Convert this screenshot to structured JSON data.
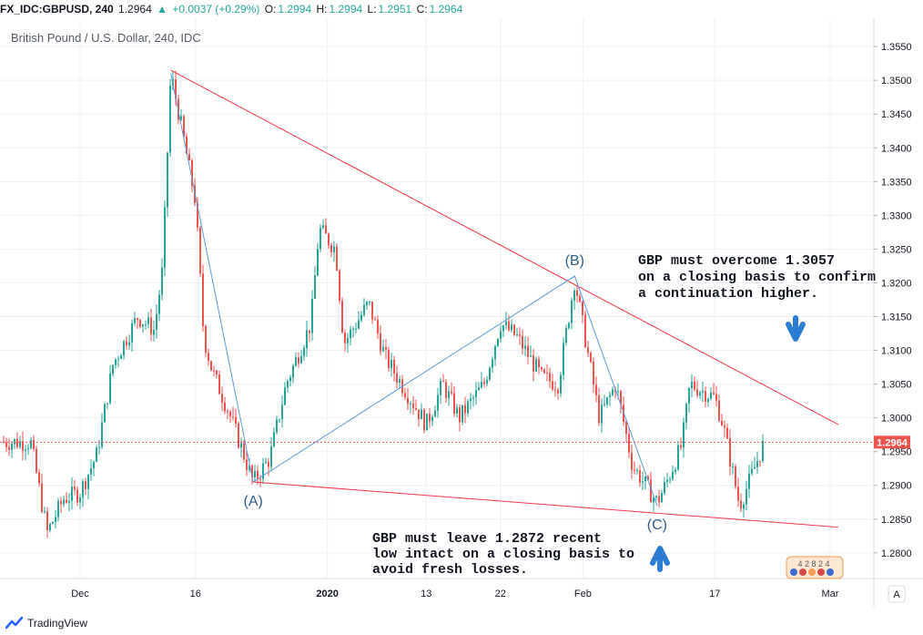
{
  "header": {
    "symbol": "FX_IDC:GBPUSD, 240",
    "last": "1.2964",
    "arrow": "▲",
    "change": "+0.0037 (+0.29%)",
    "o_label": "O:",
    "o_val": "1.2994",
    "h_label": "H:",
    "h_val": "1.2994",
    "l_label": "L:",
    "l_val": "1.2951",
    "c_label": "C:",
    "c_val": "1.2964"
  },
  "chart_data": {
    "type": "candlestick",
    "title": "British Pound / U.S. Dollar, 240, IDC",
    "x_ticks": [
      "Dec",
      "16",
      "2020",
      "13",
      "22",
      "Feb",
      "17",
      "Mar"
    ],
    "y_ticks": [
      "1.3550",
      "1.3500",
      "1.3450",
      "1.3400",
      "1.3350",
      "1.3300",
      "1.3250",
      "1.3200",
      "1.3150",
      "1.3100",
      "1.3050",
      "1.3000",
      "1.2950",
      "1.2900",
      "1.2850",
      "1.2800"
    ],
    "ylim": [
      1.2762,
      1.3592
    ],
    "last_price_label": "1.2964",
    "last_price": 1.2964,
    "price_path": [
      [
        "Nov 25",
        1.2965
      ],
      [
        "Nov 27",
        1.283
      ],
      [
        "Nov 29",
        1.288
      ],
      [
        "Dec 2",
        1.289
      ],
      [
        "Dec 4",
        1.2945
      ],
      [
        "Dec 6",
        1.308
      ],
      [
        "Dec 9",
        1.315
      ],
      [
        "Dec 11",
        1.313
      ],
      [
        "Dec 12",
        1.322
      ],
      [
        "Dec 13",
        1.351
      ],
      [
        "Dec 14",
        1.345
      ],
      [
        "Dec 16",
        1.332
      ],
      [
        "Dec 17",
        1.312
      ],
      [
        "Dec 18",
        1.307
      ],
      [
        "Dec 20",
        1.301
      ],
      [
        "Dec 23",
        1.2905
      ],
      [
        "Dec 25",
        1.294
      ],
      [
        "Dec 27",
        1.305
      ],
      [
        "Dec 30",
        1.314
      ],
      [
        "Dec 31",
        1.328
      ],
      [
        "Jan 2",
        1.325
      ],
      [
        "Jan 3",
        1.311
      ],
      [
        "Jan 6",
        1.317
      ],
      [
        "Jan 8",
        1.309
      ],
      [
        "Jan 10",
        1.305
      ],
      [
        "Jan 13",
        1.299
      ],
      [
        "Jan 15",
        1.305
      ],
      [
        "Jan 17",
        1.3
      ],
      [
        "Jan 20",
        1.305
      ],
      [
        "Jan 22",
        1.314
      ],
      [
        "Jan 24",
        1.312
      ],
      [
        "Jan 27",
        1.306
      ],
      [
        "Jan 29",
        1.305
      ],
      [
        "Jan 31",
        1.3205
      ],
      [
        "Feb 3",
        1.3
      ],
      [
        "Feb 5",
        1.305
      ],
      [
        "Feb 7",
        1.293
      ],
      [
        "Feb 10",
        1.2875
      ],
      [
        "Feb 11",
        1.29
      ],
      [
        "Feb 13",
        1.296
      ],
      [
        "Feb 14",
        1.305
      ],
      [
        "Feb 17",
        1.303
      ],
      [
        "Feb 18",
        1.299
      ],
      [
        "Feb 20",
        1.287
      ],
      [
        "Feb 21",
        1.29
      ],
      [
        "Feb 23",
        1.2964
      ]
    ],
    "trendlines": [
      {
        "name": "upper",
        "from": [
          "Dec 13",
          1.3515
        ],
        "to": [
          "Mar 3",
          1.299
        ]
      },
      {
        "name": "lower",
        "from": [
          "Dec 23",
          1.2905
        ],
        "to": [
          "Mar 3",
          1.2838
        ]
      }
    ],
    "zigzag": [
      [
        "Dec 13",
        1.351
      ],
      [
        "Dec 23",
        1.2905
      ],
      [
        "Jan 31",
        1.321
      ],
      [
        "Feb 10",
        1.287
      ]
    ],
    "points": [
      {
        "label": "(A)",
        "x": "Dec 23",
        "y": 1.2905
      },
      {
        "label": "(B)",
        "x": "Jan 31",
        "y": 1.321
      },
      {
        "label": "(C)",
        "x": "Feb 10",
        "y": 1.287
      }
    ],
    "annotations": {
      "top": [
        "GBP must overcome 1.3057",
        "on a closing basis to confirm",
        "a continuation higher."
      ],
      "bottom": [
        "GBP must leave 1.2872 recent",
        "low intact on a closing basis to",
        "avoid fresh losses."
      ]
    },
    "colors": {
      "up": "#26a69a",
      "down": "#ef5350",
      "trend": "#f23645",
      "zigzag": "#5b9bd5",
      "arrow": "#2b7cd3",
      "label": "#2f5f8a"
    }
  },
  "misc": {
    "scale_button": "A",
    "flag_numbers": "4 2 8 2 4"
  },
  "footer": {
    "brand": "TradingView"
  }
}
